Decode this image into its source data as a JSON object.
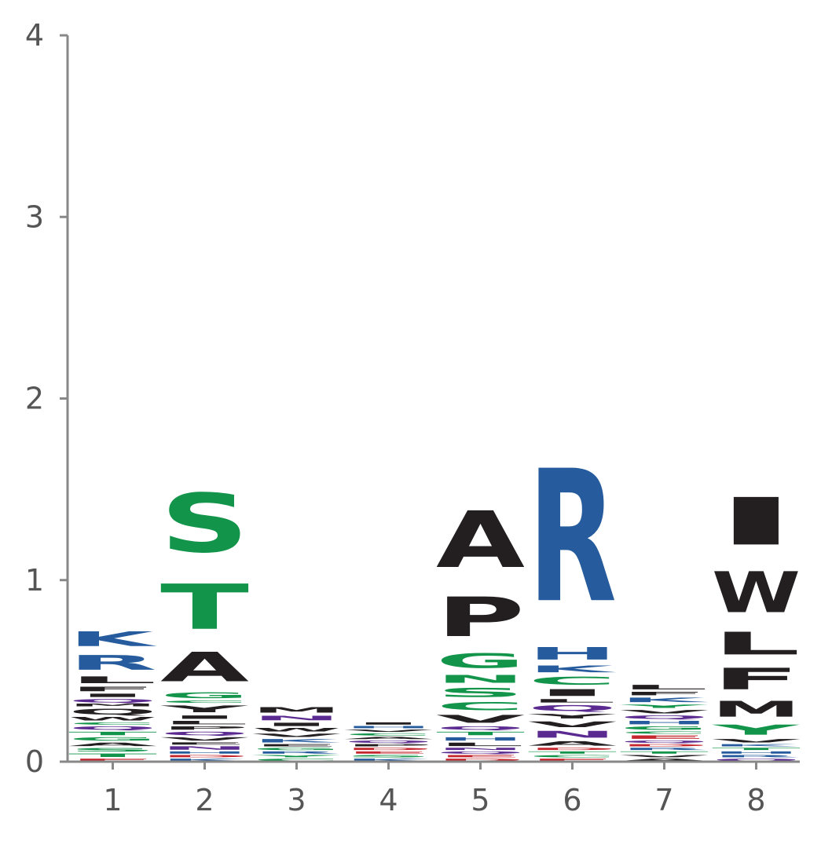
{
  "chart_data": {
    "type": "sequence_logo",
    "ylim": [
      0,
      4
    ],
    "yticks": [
      "0",
      "1",
      "2",
      "3",
      "4"
    ],
    "positions": [
      "1",
      "2",
      "3",
      "4",
      "5",
      "6",
      "7",
      "8"
    ],
    "colors": {
      "blue": "#265c9e",
      "green": "#12944a",
      "black": "#231f20",
      "purple": "#5b2a90",
      "red": "#c4272e",
      "axis": "#888888",
      "tick_text": "#555555"
    },
    "stacks": [
      {
        "position": "1",
        "letters": [
          {
            "letter": "E",
            "height": 0.02,
            "color": "red"
          },
          {
            "letter": "T",
            "height": 0.03,
            "color": "green"
          },
          {
            "letter": "S",
            "height": 0.03,
            "color": "green"
          },
          {
            "letter": "A",
            "height": 0.03,
            "color": "black"
          },
          {
            "letter": "G",
            "height": 0.03,
            "color": "green"
          },
          {
            "letter": "T",
            "height": 0.03,
            "color": "green"
          },
          {
            "letter": "Q",
            "height": 0.03,
            "color": "purple"
          },
          {
            "letter": "C",
            "height": 0.02,
            "color": "green"
          },
          {
            "letter": "W",
            "height": 0.03,
            "color": "black"
          },
          {
            "letter": "Q",
            "height": 0.05,
            "color": "black"
          },
          {
            "letter": "M",
            "height": 0.02,
            "color": "black"
          },
          {
            "letter": "Q",
            "height": 0.03,
            "color": "purple"
          },
          {
            "letter": "I",
            "height": 0.03,
            "color": "black"
          },
          {
            "letter": "F",
            "height": 0.04,
            "color": "black"
          },
          {
            "letter": "L",
            "height": 0.06,
            "color": "black"
          },
          {
            "letter": "R",
            "height": 0.13,
            "color": "blue"
          },
          {
            "letter": "K",
            "height": 0.13,
            "color": "blue"
          }
        ]
      },
      {
        "position": "2",
        "letters": [
          {
            "letter": "K",
            "height": 0.02,
            "color": "blue"
          },
          {
            "letter": "D",
            "height": 0.02,
            "color": "red"
          },
          {
            "letter": "H",
            "height": 0.02,
            "color": "blue"
          },
          {
            "letter": "N",
            "height": 0.03,
            "color": "purple"
          },
          {
            "letter": "E",
            "height": 0.02,
            "color": "black"
          },
          {
            "letter": "V",
            "height": 0.03,
            "color": "black"
          },
          {
            "letter": "Q",
            "height": 0.03,
            "color": "purple"
          },
          {
            "letter": "P",
            "height": 0.03,
            "color": "black"
          },
          {
            "letter": "L",
            "height": 0.03,
            "color": "black"
          },
          {
            "letter": "I",
            "height": 0.03,
            "color": "black"
          },
          {
            "letter": "Y",
            "height": 0.06,
            "color": "black"
          },
          {
            "letter": "C",
            "height": 0.02,
            "color": "green"
          },
          {
            "letter": "G",
            "height": 0.05,
            "color": "green"
          },
          {
            "letter": "A",
            "height": 0.26,
            "color": "black"
          },
          {
            "letter": "T",
            "height": 0.4,
            "color": "green"
          },
          {
            "letter": "S",
            "height": 0.52,
            "color": "green"
          }
        ]
      },
      {
        "position": "3",
        "letters": [
          {
            "letter": "C",
            "height": 0.02,
            "color": "green"
          },
          {
            "letter": "Y",
            "height": 0.02,
            "color": "green"
          },
          {
            "letter": "R",
            "height": 0.02,
            "color": "blue"
          },
          {
            "letter": "G",
            "height": 0.02,
            "color": "green"
          },
          {
            "letter": "E",
            "height": 0.02,
            "color": "black"
          },
          {
            "letter": "K",
            "height": 0.03,
            "color": "blue"
          },
          {
            "letter": "V",
            "height": 0.03,
            "color": "black"
          },
          {
            "letter": "W",
            "height": 0.03,
            "color": "black"
          },
          {
            "letter": "I",
            "height": 0.03,
            "color": "black"
          },
          {
            "letter": "N",
            "height": 0.04,
            "color": "purple"
          },
          {
            "letter": "M",
            "height": 0.05,
            "color": "black"
          }
        ]
      },
      {
        "position": "4",
        "letters": [
          {
            "letter": "K",
            "height": 0.02,
            "color": "blue"
          },
          {
            "letter": "S",
            "height": 0.02,
            "color": "green"
          },
          {
            "letter": "E",
            "height": 0.02,
            "color": "red"
          },
          {
            "letter": "D",
            "height": 0.02,
            "color": "red"
          },
          {
            "letter": "P",
            "height": 0.02,
            "color": "black"
          },
          {
            "letter": "Q",
            "height": 0.02,
            "color": "purple"
          },
          {
            "letter": "A",
            "height": 0.02,
            "color": "black"
          },
          {
            "letter": "C",
            "height": 0.02,
            "color": "green"
          },
          {
            "letter": "V",
            "height": 0.02,
            "color": "black"
          },
          {
            "letter": "H",
            "height": 0.02,
            "color": "blue"
          },
          {
            "letter": "I",
            "height": 0.02,
            "color": "black"
          }
        ]
      },
      {
        "position": "5",
        "letters": [
          {
            "letter": "D",
            "height": 0.02,
            "color": "red"
          },
          {
            "letter": "E",
            "height": 0.02,
            "color": "red"
          },
          {
            "letter": "Q",
            "height": 0.02,
            "color": "purple"
          },
          {
            "letter": "N",
            "height": 0.02,
            "color": "purple"
          },
          {
            "letter": "L",
            "height": 0.03,
            "color": "black"
          },
          {
            "letter": "H",
            "height": 0.03,
            "color": "blue"
          },
          {
            "letter": "T",
            "height": 0.03,
            "color": "green"
          },
          {
            "letter": "Q",
            "height": 0.03,
            "color": "purple"
          },
          {
            "letter": "V",
            "height": 0.07,
            "color": "black"
          },
          {
            "letter": "C",
            "height": 0.07,
            "color": "green"
          },
          {
            "letter": "S",
            "height": 0.08,
            "color": "green"
          },
          {
            "letter": "N",
            "height": 0.07,
            "color": "green"
          },
          {
            "letter": "G",
            "height": 0.13,
            "color": "green"
          },
          {
            "letter": "P",
            "height": 0.35,
            "color": "black"
          },
          {
            "letter": "A",
            "height": 0.5,
            "color": "black"
          }
        ]
      },
      {
        "position": "6",
        "letters": [
          {
            "letter": "E",
            "height": 0.02,
            "color": "red"
          },
          {
            "letter": "C",
            "height": 0.02,
            "color": "green"
          },
          {
            "letter": "T",
            "height": 0.02,
            "color": "green"
          },
          {
            "letter": "D",
            "height": 0.02,
            "color": "red"
          },
          {
            "letter": "A",
            "height": 0.04,
            "color": "black"
          },
          {
            "letter": "N",
            "height": 0.06,
            "color": "purple"
          },
          {
            "letter": "V",
            "height": 0.05,
            "color": "black"
          },
          {
            "letter": "Y",
            "height": 0.04,
            "color": "black"
          },
          {
            "letter": "Q",
            "height": 0.05,
            "color": "purple"
          },
          {
            "letter": "L",
            "height": 0.03,
            "color": "black"
          },
          {
            "letter": "I",
            "height": 0.06,
            "color": "black"
          },
          {
            "letter": "C",
            "height": 0.07,
            "color": "green"
          },
          {
            "letter": "K",
            "height": 0.06,
            "color": "blue"
          },
          {
            "letter": "H",
            "height": 0.11,
            "color": "blue"
          },
          {
            "letter": "R",
            "height": 1.17,
            "color": "blue"
          }
        ]
      },
      {
        "position": "7",
        "letters": [
          {
            "letter": "A",
            "height": 0.02,
            "color": "black"
          },
          {
            "letter": "V",
            "height": 0.02,
            "color": "black"
          },
          {
            "letter": "T",
            "height": 0.02,
            "color": "green"
          },
          {
            "letter": "R",
            "height": 0.02,
            "color": "blue"
          },
          {
            "letter": "D",
            "height": 0.02,
            "color": "red"
          },
          {
            "letter": "Q",
            "height": 0.02,
            "color": "purple"
          },
          {
            "letter": "E",
            "height": 0.03,
            "color": "red"
          },
          {
            "letter": "C",
            "height": 0.02,
            "color": "green"
          },
          {
            "letter": "G",
            "height": 0.03,
            "color": "green"
          },
          {
            "letter": "H",
            "height": 0.03,
            "color": "blue"
          },
          {
            "letter": "Q",
            "height": 0.03,
            "color": "purple"
          },
          {
            "letter": "V",
            "height": 0.03,
            "color": "black"
          },
          {
            "letter": "Y",
            "height": 0.03,
            "color": "green"
          },
          {
            "letter": "K",
            "height": 0.04,
            "color": "blue"
          },
          {
            "letter": "F",
            "height": 0.03,
            "color": "black"
          },
          {
            "letter": "L",
            "height": 0.04,
            "color": "black"
          }
        ]
      },
      {
        "position": "8",
        "letters": [
          {
            "letter": "Q",
            "height": 0.02,
            "color": "purple"
          },
          {
            "letter": "R",
            "height": 0.02,
            "color": "blue"
          },
          {
            "letter": "H",
            "height": 0.02,
            "color": "blue"
          },
          {
            "letter": "T",
            "height": 0.02,
            "color": "green"
          },
          {
            "letter": "K",
            "height": 0.02,
            "color": "blue"
          },
          {
            "letter": "V",
            "height": 0.03,
            "color": "black"
          },
          {
            "letter": "Y",
            "height": 0.09,
            "color": "green"
          },
          {
            "letter": "M",
            "height": 0.14,
            "color": "black"
          },
          {
            "letter": "F",
            "height": 0.19,
            "color": "black"
          },
          {
            "letter": "L",
            "height": 0.2,
            "color": "black"
          },
          {
            "letter": "W",
            "height": 0.36,
            "color": "black"
          },
          {
            "letter": "I",
            "height": 0.42,
            "color": "black"
          }
        ]
      }
    ]
  }
}
